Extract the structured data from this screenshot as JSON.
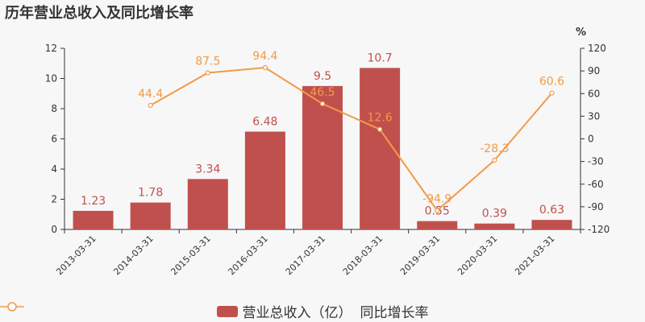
{
  "title": "历年营业总收入及同比增长率",
  "right_axis_unit": "%",
  "colors": {
    "bar": "#c0504d",
    "line": "#f19b48",
    "axis": "#333333",
    "text": "#333333"
  },
  "legend": {
    "bar_label": "营业总收入（亿）",
    "line_label": "同比增长率"
  },
  "chart_data": {
    "type": "bar",
    "categories": [
      "2013-03-31",
      "2014-03-31",
      "2015-03-31",
      "2016-03-31",
      "2017-03-31",
      "2018-03-31",
      "2019-03-31",
      "2020-03-31",
      "2021-03-31"
    ],
    "series": [
      {
        "name": "营业总收入（亿）",
        "type": "bar",
        "axis": "left",
        "values": [
          1.23,
          1.78,
          3.34,
          6.48,
          9.5,
          10.7,
          0.55,
          0.39,
          0.63
        ],
        "labels": [
          "1.23",
          "1.78",
          "3.34",
          "6.48",
          "9.5",
          "10.7",
          "0.55",
          "0.39",
          "0.63"
        ]
      },
      {
        "name": "同比增长率",
        "type": "line",
        "axis": "right",
        "values": [
          null,
          44.4,
          87.5,
          94.4,
          46.5,
          12.6,
          -94.9,
          -28.3,
          60.6
        ],
        "labels": [
          "",
          "44.4",
          "87.5",
          "94.4",
          "46.5",
          "12.6",
          "-94.9",
          "-28.3",
          "60.6"
        ]
      }
    ],
    "y_left": {
      "min": 0,
      "max": 12,
      "ticks": [
        "0",
        "2",
        "4",
        "6",
        "8",
        "10",
        "12"
      ]
    },
    "y_right": {
      "min": -120,
      "max": 120,
      "ticks": [
        "-120",
        "-90",
        "-60",
        "-30",
        "0",
        "30",
        "60",
        "90",
        "120"
      ]
    },
    "grid": false,
    "legend_position": "bottom"
  }
}
